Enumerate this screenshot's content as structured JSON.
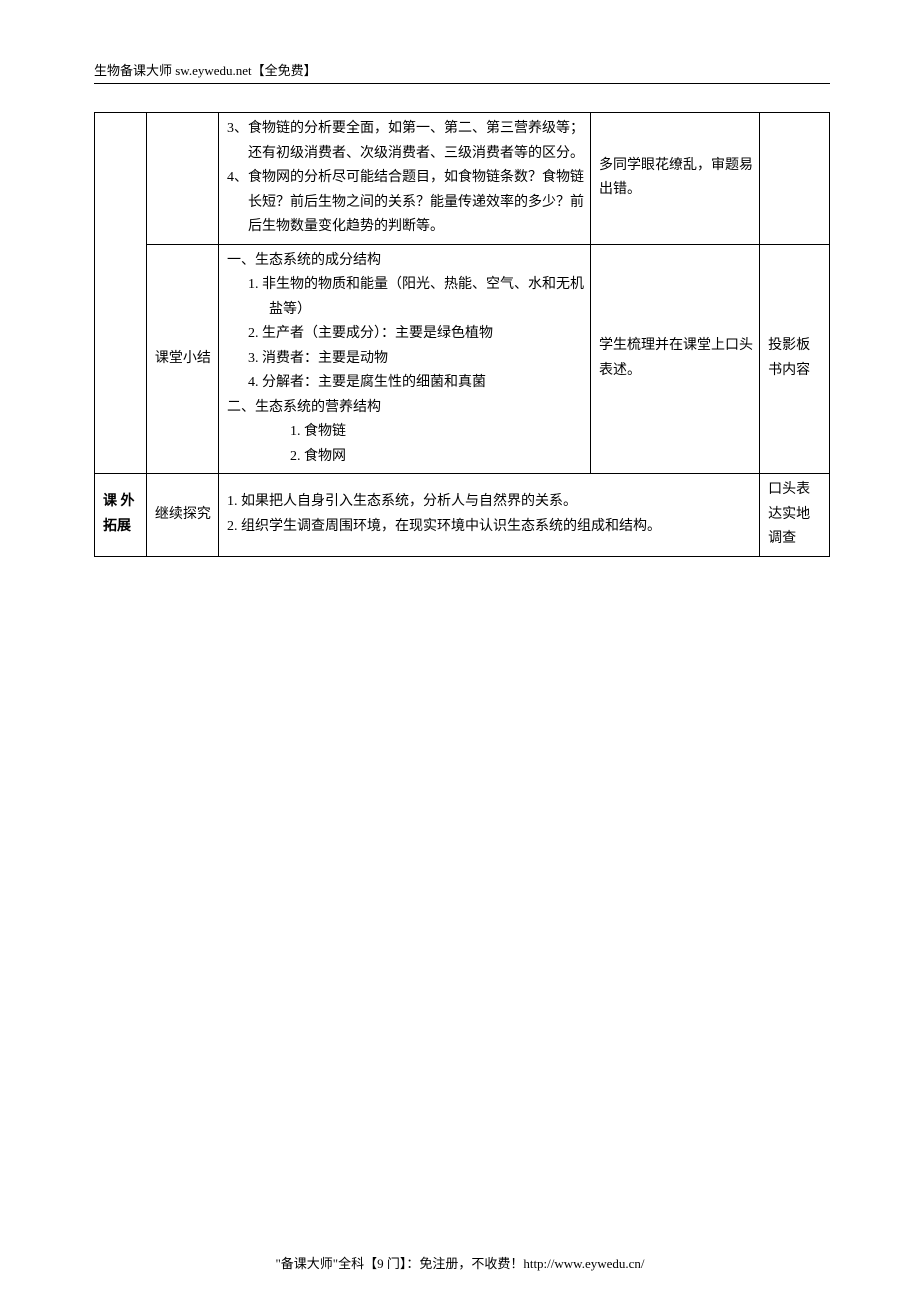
{
  "header": "生物备课大师  sw.eywedu.net【全免费】",
  "footer": "\"备课大师\"全科【9 门】：免注册，不收费！http://www.eywedu.cn/",
  "table": {
    "row1": {
      "col2": "",
      "col3_lines": [
        "3、食物链的分析要全面，如第一、第二、第三营养级等；还有初级消费者、次级消费者、三级消费者等的区分。",
        "4、食物网的分析尽可能结合题目，如食物链条数？食物链长短？前后生物之间的关系？能量传递效率的多少？前后生物数量变化趋势的判断等。"
      ],
      "col4": "多同学眼花缭乱，审题易出错。",
      "col5": ""
    },
    "row2": {
      "col2": "课堂小结",
      "col3": {
        "h1": "一、生态系统的成分结构",
        "i1": "1. 非生物的物质和能量（阳光、热能、空气、水和无机盐等）",
        "i2": "2. 生产者（主要成分）：主要是绿色植物",
        "i3": "3. 消费者：主要是动物",
        "i4": "4. 分解者：主要是腐生性的细菌和真菌",
        "h2": "二、生态系统的营养结构",
        "j1": "1. 食物链",
        "j2": "2. 食物网"
      },
      "col4": "学生梳理并在课堂上口头表述。",
      "col5": "投影板书内容"
    },
    "row3": {
      "col1": "课  外拓展",
      "col2": "继续探究",
      "col3_lines": [
        "1. 如果把人自身引入生态系统，分析人与自然界的关系。",
        "2. 组织学生调查周围环境，在现实环境中认识生态系统的组成和结构。"
      ],
      "col5": "口头表达实地调查"
    }
  }
}
